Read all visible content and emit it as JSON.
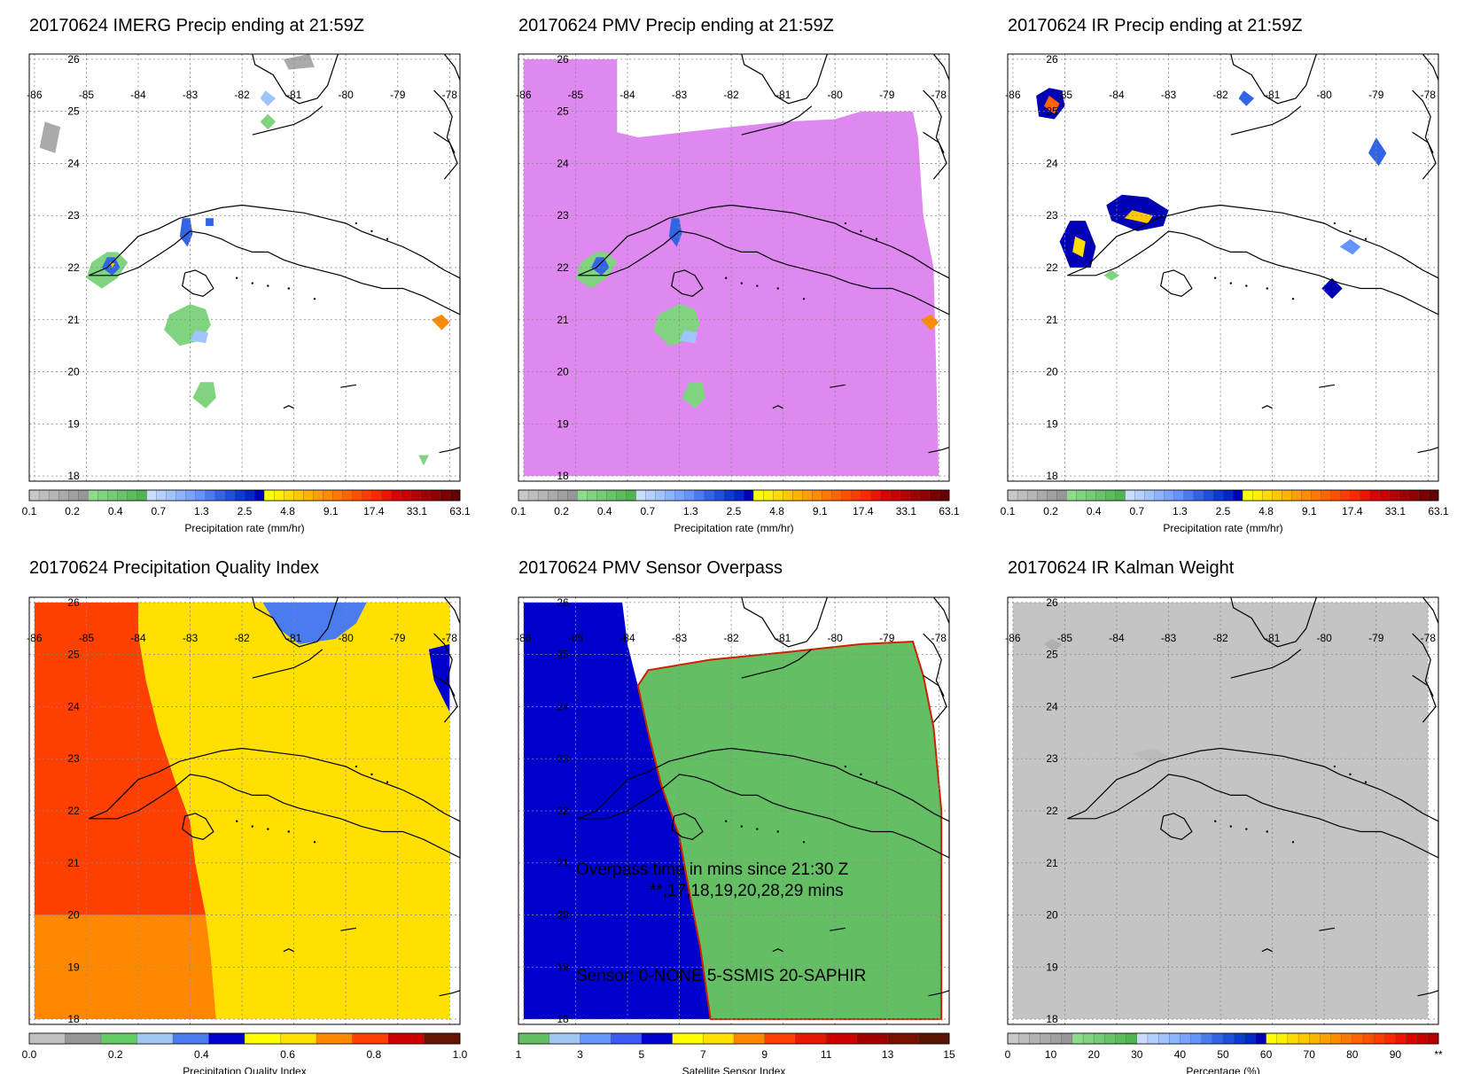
{
  "panels": [
    {
      "title": "20170624 IMERG Precip ending at 21:59Z",
      "field": "imerg",
      "lon_labels": [
        "-86",
        "-85",
        "-84",
        "-83",
        "-82",
        "-81",
        "-80",
        "-79",
        "-78"
      ],
      "lat_labels": [
        "26",
        "25",
        "24",
        "23",
        "22",
        "21",
        "20",
        "19",
        "18"
      ],
      "colorbar": {
        "label": "Precipitation rate (mm/hr)",
        "ticks": [
          "0.1",
          "0.2",
          "0.4",
          "0.7",
          "1.3",
          "2.5",
          "4.8",
          "9.1",
          "17.4",
          "33.1",
          "63.1"
        ],
        "colors": [
          "#c8c8c8",
          "#bebebe",
          "#b4b4b4",
          "#aaaaaa",
          "#a0a0a0",
          "#969696",
          "#8cdc8c",
          "#80d480",
          "#74cc74",
          "#68c468",
          "#5cbc5c",
          "#50b450",
          "#c8dcff",
          "#b4d0ff",
          "#a0c4ff",
          "#8cb4ff",
          "#78a4ff",
          "#6494ff",
          "#4a7cf0",
          "#3264e6",
          "#1e50dc",
          "#0a3cd2",
          "#0028c8",
          "#0000b4",
          "#ffff00",
          "#fff000",
          "#ffdc00",
          "#ffc800",
          "#ffb400",
          "#ffa000",
          "#ff8c00",
          "#ff7800",
          "#ff6400",
          "#ff5000",
          "#ff3c00",
          "#ff2800",
          "#f01400",
          "#dc0000",
          "#c80000",
          "#b40000",
          "#a00000",
          "#8c0000",
          "#780000",
          "#640000"
        ]
      }
    },
    {
      "title": "20170624 PMV Precip ending at 21:59Z",
      "field": "pmv",
      "lon_labels": [
        "-86",
        "-85",
        "-84",
        "-83",
        "-82",
        "-81",
        "-80",
        "-79",
        "-78"
      ],
      "lat_labels": [
        "26",
        "25",
        "24",
        "23",
        "22",
        "21",
        "20",
        "19",
        "18"
      ],
      "colorbar": {
        "label": "Precipitation rate (mm/hr)",
        "ticks": [
          "0.1",
          "0.2",
          "0.4",
          "0.7",
          "1.3",
          "2.5",
          "4.8",
          "9.1",
          "17.4",
          "33.1",
          "63.1"
        ],
        "colors": [
          "#c8c8c8",
          "#bebebe",
          "#b4b4b4",
          "#aaaaaa",
          "#a0a0a0",
          "#969696",
          "#8cdc8c",
          "#80d480",
          "#74cc74",
          "#68c468",
          "#5cbc5c",
          "#50b450",
          "#c8dcff",
          "#b4d0ff",
          "#a0c4ff",
          "#8cb4ff",
          "#78a4ff",
          "#6494ff",
          "#4a7cf0",
          "#3264e6",
          "#1e50dc",
          "#0a3cd2",
          "#0028c8",
          "#0000b4",
          "#ffff00",
          "#fff000",
          "#ffdc00",
          "#ffc800",
          "#ffb400",
          "#ffa000",
          "#ff8c00",
          "#ff7800",
          "#ff6400",
          "#ff5000",
          "#ff3c00",
          "#ff2800",
          "#f01400",
          "#dc0000",
          "#c80000",
          "#b40000",
          "#a00000",
          "#8c0000",
          "#780000",
          "#640000"
        ]
      }
    },
    {
      "title": "20170624 IR Precip ending at 21:59Z",
      "field": "ir",
      "lon_labels": [
        "-86",
        "-85",
        "-84",
        "-83",
        "-82",
        "-81",
        "-80",
        "-79",
        "-78"
      ],
      "lat_labels": [
        "26",
        "25",
        "24",
        "23",
        "22",
        "21",
        "20",
        "19",
        "18"
      ],
      "colorbar": {
        "label": "Precipitation rate (mm/hr)",
        "ticks": [
          "0.1",
          "0.2",
          "0.4",
          "0.7",
          "1.3",
          "2.5",
          "4.8",
          "9.1",
          "17.4",
          "33.1",
          "63.1"
        ],
        "colors": [
          "#c8c8c8",
          "#bebebe",
          "#b4b4b4",
          "#aaaaaa",
          "#a0a0a0",
          "#969696",
          "#8cdc8c",
          "#80d480",
          "#74cc74",
          "#68c468",
          "#5cbc5c",
          "#50b450",
          "#c8dcff",
          "#b4d0ff",
          "#a0c4ff",
          "#8cb4ff",
          "#78a4ff",
          "#6494ff",
          "#4a7cf0",
          "#3264e6",
          "#1e50dc",
          "#0a3cd2",
          "#0028c8",
          "#0000b4",
          "#ffff00",
          "#fff000",
          "#ffdc00",
          "#ffc800",
          "#ffb400",
          "#ffa000",
          "#ff8c00",
          "#ff7800",
          "#ff6400",
          "#ff5000",
          "#ff3c00",
          "#ff2800",
          "#f01400",
          "#dc0000",
          "#c80000",
          "#b40000",
          "#a00000",
          "#8c0000",
          "#780000",
          "#640000"
        ]
      }
    },
    {
      "title": "20170624 Precipitation Quality Index",
      "field": "pqi",
      "lon_labels": [
        "-86",
        "-85",
        "-84",
        "-83",
        "-82",
        "-81",
        "-80",
        "-79",
        "-78"
      ],
      "lat_labels": [
        "26",
        "25",
        "24",
        "23",
        "22",
        "21",
        "20",
        "19",
        "18"
      ],
      "colorbar": {
        "label": "Precipitation Quality Index",
        "ticks": [
          "0.0",
          "0.2",
          "0.4",
          "0.6",
          "0.8",
          "1.0"
        ],
        "colors": [
          "#c0c0c0",
          "#969696",
          "#64cc64",
          "#a0c8f0",
          "#4a7cf0",
          "#0000cc",
          "#ffff00",
          "#ffe000",
          "#ff8800",
          "#ff4000",
          "#cc0000",
          "#661400"
        ]
      }
    },
    {
      "title": "20170624 PMV Sensor Overpass",
      "field": "sensor",
      "lon_labels": [
        "-86",
        "-85",
        "-84",
        "-83",
        "-82",
        "-81",
        "-80",
        "-79",
        "-78"
      ],
      "lat_labels": [
        "26",
        "25",
        "24",
        "23",
        "22",
        "21",
        "20",
        "19",
        "18"
      ],
      "annotation": {
        "line1": "Overpass time in mins since 21:30 Z",
        "line2": "**,17,18,19,20,28,29 mins",
        "line3": "Sensor:   0-NONE  5-SSMIS 20-SAPHIR"
      },
      "colorbar": {
        "label": "Satellite Sensor Index",
        "ticks": [
          "1",
          "3",
          "5",
          "7",
          "9",
          "11",
          "13",
          "15"
        ],
        "colors": [
          "#64be64",
          "#a0c8f0",
          "#6496ff",
          "#3a5cf0",
          "#0000cc",
          "#ffff00",
          "#ffe000",
          "#ff8800",
          "#ff4000",
          "#e81800",
          "#cc0000",
          "#a00000",
          "#781000",
          "#5a1400"
        ]
      }
    },
    {
      "title": "20170624 IR Kalman Weight",
      "field": "kalman",
      "lon_labels": [
        "-86",
        "-85",
        "-84",
        "-83",
        "-82",
        "-81",
        "-80",
        "-79",
        "-78"
      ],
      "lat_labels": [
        "26",
        "25",
        "24",
        "23",
        "22",
        "21",
        "20",
        "19",
        "18"
      ],
      "colorbar": {
        "label": "Percentage (%)",
        "ticks": [
          "0",
          "10",
          "20",
          "30",
          "40",
          "50",
          "60",
          "70",
          "80",
          "90",
          "**"
        ],
        "colors": [
          "#c8c8c8",
          "#bebebe",
          "#b4b4b4",
          "#aaaaaa",
          "#a0a0a0",
          "#969696",
          "#8cdc8c",
          "#80d480",
          "#74cc74",
          "#68c468",
          "#5cbc5c",
          "#50b450",
          "#c8dcff",
          "#b4d0ff",
          "#a0c4ff",
          "#8cb4ff",
          "#78a4ff",
          "#6494ff",
          "#4a7cf0",
          "#3264e6",
          "#1e50dc",
          "#0a3cd2",
          "#0028c8",
          "#0000b4",
          "#ffff00",
          "#fff000",
          "#ffdc00",
          "#ffc800",
          "#ffb400",
          "#ffa000",
          "#ff8c00",
          "#ff7800",
          "#ff6400",
          "#ff5000",
          "#ff3c00",
          "#ff2800",
          "#f01400",
          "#dc0000",
          "#c80000",
          "#b40000"
        ]
      }
    }
  ]
}
